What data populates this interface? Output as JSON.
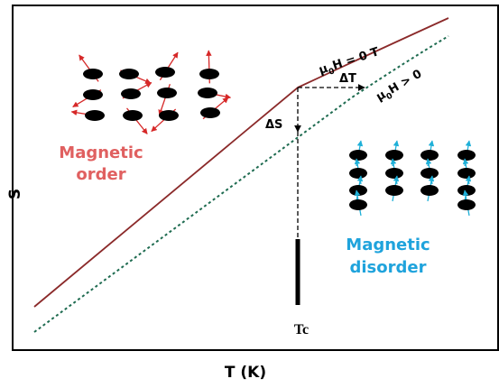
{
  "axes": {
    "y_label": "S",
    "x_label": "T (K)"
  },
  "curves": [
    {
      "symbol": "μ",
      "subscript": "0",
      "rest": "H = 0 T"
    },
    {
      "symbol": "μ",
      "subscript": "0",
      "rest": "H > 0"
    }
  ],
  "arrows": {
    "delta_t": "ΔT",
    "delta_s": "ΔS"
  },
  "transition": "Tc",
  "regions": {
    "order": [
      "Magnetic",
      "order"
    ],
    "disorder": [
      "Magnetic",
      "disorder"
    ]
  }
}
